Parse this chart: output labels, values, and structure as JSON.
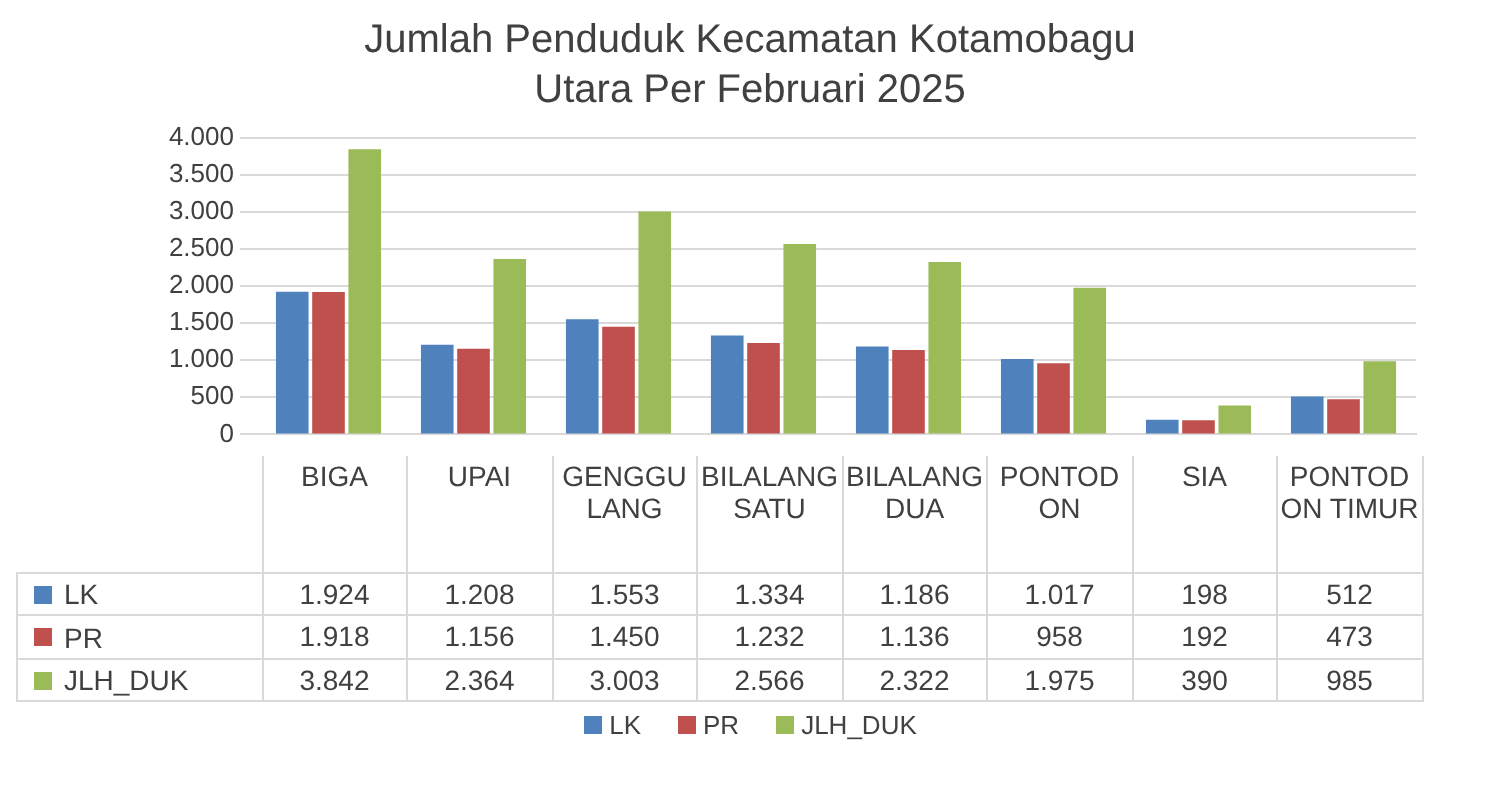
{
  "chart_data": {
    "type": "bar",
    "title": "Jumlah Penduduk Kecamatan Kotamobagu Utara Per Februari 2025",
    "categories": [
      "BIGA",
      "UPAI",
      "GENGGULANG",
      "BILALANG SATU",
      "BILALANG DUA",
      "PONTODON",
      "SIA",
      "PONTODON TIMUR"
    ],
    "series": [
      {
        "name": "LK",
        "color": "#4f81bd",
        "values": [
          1924,
          1208,
          1553,
          1334,
          1186,
          1017,
          198,
          512
        ],
        "value_labels": [
          "1.924",
          "1.208",
          "1.553",
          "1.334",
          "1.186",
          "1.017",
          "198",
          "512"
        ]
      },
      {
        "name": "PR",
        "color": "#c0504d",
        "values": [
          1918,
          1156,
          1450,
          1232,
          1136,
          958,
          192,
          473
        ],
        "value_labels": [
          "1.918",
          "1.156",
          "1.450",
          "1.232",
          "1.136",
          "958",
          "192",
          "473"
        ]
      },
      {
        "name": "JLH_DUK",
        "color": "#9bbb59",
        "values": [
          3842,
          2364,
          3003,
          2566,
          2322,
          1975,
          390,
          985
        ],
        "value_labels": [
          "3.842",
          "2.364",
          "3.003",
          "2.566",
          "2.322",
          "1.975",
          "390",
          "985"
        ]
      }
    ],
    "ylim": [
      0,
      4000
    ],
    "yticks": [
      0,
      {
        "value": 500,
        "label": "500"
      },
      {
        "value": 1000,
        "label": "1.000"
      },
      {
        "value": 1500,
        "label": "1.500"
      },
      {
        "value": 2000,
        "label": "2.000"
      },
      {
        "value": 2500,
        "label": "2.500"
      },
      {
        "value": 3000,
        "label": "3.000"
      },
      {
        "value": 3500,
        "label": "3.500"
      },
      {
        "value": 4000,
        "label": "4.000"
      }
    ],
    "grid": "y",
    "legend": "bottom"
  }
}
